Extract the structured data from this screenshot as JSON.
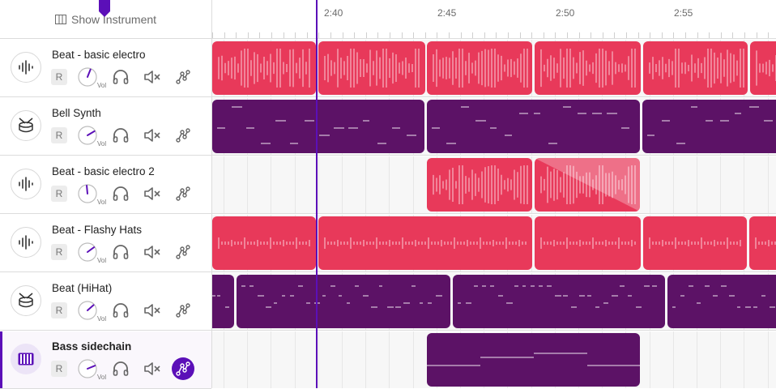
{
  "header": {
    "show_instrument_label": "Show Instrument",
    "show_instrument_icon": "columns-icon"
  },
  "colors": {
    "red_clip": "#e8395a",
    "purple_clip": "#5c1266",
    "accent": "#5b0fb8",
    "lane_bg": "#f7f7f7"
  },
  "ruler": {
    "labels": [
      "2:40",
      "2:45",
      "2:50",
      "2:55"
    ]
  },
  "tracks": [
    {
      "name": "Beat - basic electro",
      "icon": "waveform-icon",
      "record_label": "R",
      "vol_label": "Vol",
      "volume": 0.58,
      "selected": false,
      "automation_active": false
    },
    {
      "name": "Bell Synth",
      "icon": "drum-icon",
      "record_label": "R",
      "vol_label": "Vol",
      "volume": 0.72,
      "selected": false,
      "automation_active": false
    },
    {
      "name": "Beat - basic electro 2",
      "icon": "waveform-icon",
      "record_label": "R",
      "vol_label": "Vol",
      "volume": 0.48,
      "selected": false,
      "automation_active": false
    },
    {
      "name": "Beat - Flashy Hats",
      "icon": "waveform-icon",
      "record_label": "R",
      "vol_label": "Vol",
      "volume": 0.7,
      "selected": false,
      "automation_active": false
    },
    {
      "name": "Beat (HiHat)",
      "icon": "drum-icon",
      "record_label": "R",
      "vol_label": "Vol",
      "volume": 0.68,
      "selected": false,
      "automation_active": false
    },
    {
      "name": "Bass sidechain",
      "icon": "piano-icon",
      "record_label": "R",
      "vol_label": "Vol",
      "volume": 0.75,
      "selected": true,
      "automation_active": true
    }
  ]
}
